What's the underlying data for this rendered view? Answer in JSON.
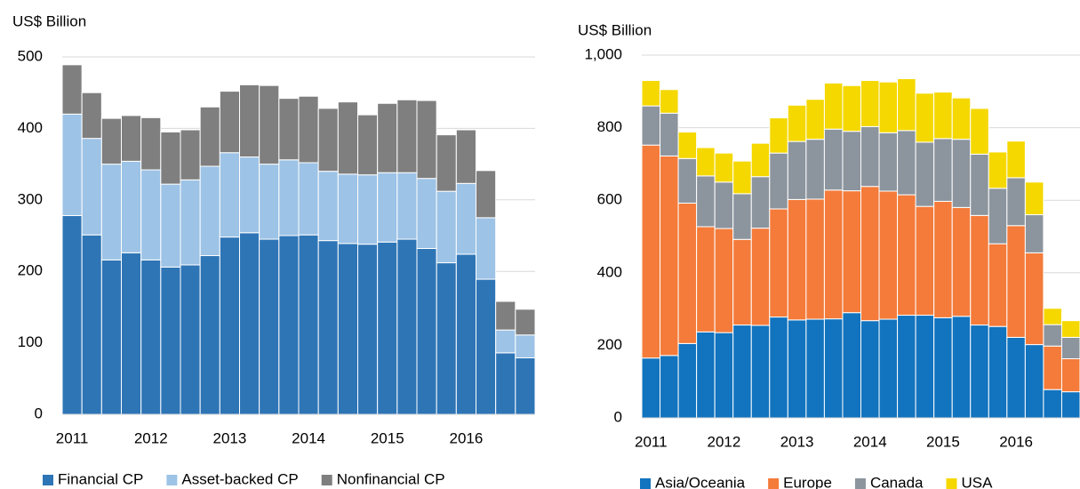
{
  "chart_data": [
    {
      "type": "stacked_bar",
      "y_label": "US$ Billion",
      "categories": [
        "2011",
        null,
        null,
        null,
        "2012",
        null,
        null,
        null,
        "2013",
        null,
        null,
        null,
        "2014",
        null,
        null,
        null,
        "2015",
        null,
        null,
        null,
        "2016",
        null,
        null,
        null
      ],
      "series": [
        {
          "name": "Financial CP",
          "color": "#2e75b6",
          "values": [
            278,
            251,
            216,
            226,
            216,
            206,
            209,
            222,
            248,
            254,
            245,
            250,
            251,
            243,
            239,
            238,
            241,
            245,
            232,
            212,
            224,
            189,
            86,
            79
          ]
        },
        {
          "name": "Asset-backed CP",
          "color": "#9dc3e6",
          "values": [
            142,
            135,
            134,
            128,
            126,
            116,
            119,
            125,
            118,
            106,
            105,
            106,
            101,
            97,
            97,
            97,
            97,
            93,
            98,
            100,
            99,
            86,
            32,
            32
          ]
        },
        {
          "name": "Nonfinancial CP",
          "color": "#7f7f7f",
          "values": [
            69,
            64,
            64,
            64,
            73,
            73,
            70,
            83,
            86,
            101,
            110,
            86,
            93,
            88,
            101,
            84,
            97,
            102,
            109,
            79,
            75,
            66,
            40,
            36
          ]
        }
      ],
      "ylim": [
        0,
        500
      ],
      "yticks": [
        0,
        100,
        200,
        300,
        400,
        500
      ],
      "grid": true,
      "legend": "bottom"
    },
    {
      "type": "stacked_bar",
      "y_label": "US$ Billion",
      "categories": [
        "2011",
        null,
        null,
        null,
        "2012",
        null,
        null,
        null,
        "2013",
        null,
        null,
        null,
        "2014",
        null,
        null,
        null,
        "2015",
        null,
        null,
        null,
        "2016",
        null,
        null,
        null
      ],
      "series": [
        {
          "name": "Asia/Oceania",
          "color": "#1273be",
          "values": [
            165,
            172,
            205,
            237,
            235,
            256,
            255,
            278,
            270,
            272,
            273,
            290,
            268,
            272,
            283,
            283,
            276,
            280,
            256,
            252,
            222,
            202,
            78,
            72
          ]
        },
        {
          "name": "Europe",
          "color": "#f47b3a",
          "values": [
            587,
            550,
            387,
            290,
            287,
            236,
            268,
            298,
            332,
            331,
            355,
            336,
            370,
            353,
            332,
            300,
            321,
            300,
            302,
            228,
            308,
            253,
            120,
            91
          ]
        },
        {
          "name": "Canada",
          "color": "#8c959e",
          "values": [
            108,
            118,
            123,
            140,
            128,
            126,
            142,
            154,
            160,
            165,
            168,
            164,
            165,
            161,
            177,
            177,
            173,
            188,
            169,
            153,
            132,
            105,
            59,
            59
          ]
        },
        {
          "name": "USA",
          "color": "#f5d800",
          "values": [
            70,
            65,
            73,
            78,
            80,
            90,
            92,
            97,
            100,
            110,
            127,
            126,
            127,
            140,
            143,
            135,
            128,
            114,
            126,
            100,
            101,
            90,
            45,
            46
          ]
        }
      ],
      "ylim": [
        0,
        1000
      ],
      "yticks": [
        0,
        200,
        400,
        600,
        800,
        {
          "value": 1000,
          "label": "1,000"
        }
      ],
      "grid": true,
      "legend": "bottom"
    }
  ]
}
